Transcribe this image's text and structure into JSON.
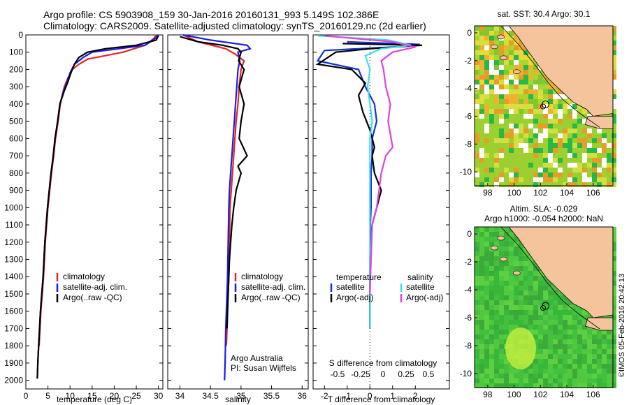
{
  "header": {
    "line1": "Argo profile: CS 5903908_159 30-Jan-2016 20160131_993 5.149S 102.386E",
    "line2": "Climatology: CARS2009. Satellite-adjusted climatology: synTS_20160129.nc (2d earlier)"
  },
  "colors": {
    "climatology": "#e8241c",
    "satellite": "#1c1ce8",
    "argo": "#000000",
    "sat_temp": "#1530d0",
    "sat_sal": "#40e0e8",
    "argo_sal": "#e040e0"
  },
  "chart_data": [
    {
      "type": "line",
      "xlabel": "temperature (deg C)",
      "ylabel": "",
      "xlim": [
        0,
        31
      ],
      "ylim": [
        2050,
        0
      ],
      "xticks": [
        "0",
        "5",
        "10",
        "15",
        "20",
        "25",
        "30"
      ],
      "yticks": [
        "0",
        "100",
        "200",
        "300",
        "400",
        "500",
        "600",
        "700",
        "800",
        "900",
        "1000",
        "1100",
        "1200",
        "1300",
        "1400",
        "1500",
        "1600",
        "1700",
        "1800",
        "1900",
        "2000"
      ],
      "legend": [
        "climatology",
        "satellite-adj. clim.",
        "Argo(..raw -QC)"
      ],
      "legend_position": "lower-center",
      "series": [
        {
          "name": "climatology",
          "x": [
            29.5,
            29,
            27,
            22,
            18,
            14,
            12,
            10.5,
            9.5,
            8.7,
            7.8,
            7.3,
            6.7,
            6.3,
            5.8,
            5.4,
            5.0,
            4.7,
            4.4,
            4.0,
            3.7,
            3.4,
            3.2,
            3.0
          ],
          "y": [
            0,
            20,
            60,
            100,
            120,
            140,
            170,
            200,
            250,
            300,
            400,
            500,
            600,
            700,
            800,
            900,
            1000,
            1100,
            1200,
            1400,
            1500,
            1600,
            1700,
            1800
          ]
        },
        {
          "name": "satellite-adj. clim.",
          "x": [
            30,
            29.3,
            27,
            21,
            15,
            13,
            11,
            10,
            9.2,
            8.5,
            7.7,
            7.2,
            6.6,
            6.2,
            5.7,
            5.3,
            4.9,
            4.6,
            4.3,
            3.9,
            3.6,
            3.3,
            3.1,
            2.9,
            2.7,
            2.6
          ],
          "y": [
            0,
            20,
            60,
            80,
            100,
            130,
            170,
            220,
            280,
            330,
            400,
            500,
            600,
            700,
            800,
            900,
            1000,
            1100,
            1200,
            1400,
            1500,
            1600,
            1700,
            1800,
            1900,
            1990
          ]
        },
        {
          "name": "Argo(..raw -QC)",
          "x": [
            30,
            29.5,
            25,
            18,
            14,
            12,
            11,
            10.2,
            9.4,
            8.6,
            7.7,
            7.2,
            6.6,
            6.2,
            5.7,
            5.3,
            4.9,
            4.6,
            4.3,
            3.9,
            3.6,
            3.3,
            3.1,
            2.9,
            2.7,
            2.6
          ],
          "y": [
            5,
            30,
            60,
            80,
            100,
            130,
            170,
            220,
            280,
            330,
            400,
            500,
            600,
            700,
            800,
            900,
            1000,
            1100,
            1200,
            1400,
            1500,
            1600,
            1700,
            1800,
            1900,
            1990
          ]
        }
      ]
    },
    {
      "type": "line",
      "xlabel": "salinity",
      "xlim": [
        33.8,
        36.1
      ],
      "ylim": [
        2050,
        0
      ],
      "xticks": [
        "34",
        "34.5",
        "35",
        "35.5",
        "36"
      ],
      "legend": [
        "climatology",
        "satellite-adj. clim.",
        "Argo(..raw -QC)"
      ],
      "legend_position": "lower-right",
      "annotations": [
        "Argo Australia",
        "PI: Susan Wijffels"
      ],
      "series": [
        {
          "name": "climatology",
          "x": [
            34.05,
            34.3,
            34.75,
            34.9,
            35.05,
            35.0,
            34.97,
            34.95,
            34.92,
            34.9,
            34.88,
            34.86,
            34.84,
            34.82,
            34.81,
            34.8,
            34.79,
            34.78,
            34.77,
            34.76
          ],
          "y": [
            0,
            40,
            80,
            110,
            150,
            200,
            300,
            400,
            500,
            600,
            700,
            800,
            900,
            1000,
            1200,
            1400,
            1500,
            1600,
            1700,
            1800
          ]
        },
        {
          "name": "satellite-adj. clim.",
          "x": [
            34.05,
            34.5,
            35.1,
            35.15,
            34.95,
            34.98,
            34.95,
            34.93,
            34.91,
            34.89,
            34.87,
            34.85,
            34.83,
            34.81,
            34.8,
            34.79,
            34.78,
            34.77,
            34.76,
            34.75,
            34.74,
            34.73
          ],
          "y": [
            0,
            30,
            60,
            80,
            100,
            150,
            200,
            300,
            400,
            500,
            600,
            700,
            800,
            900,
            1000,
            1200,
            1400,
            1500,
            1600,
            1700,
            1900,
            2000
          ]
        },
        {
          "name": "Argo(..raw -QC)",
          "x": [
            34.0,
            34.3,
            34.7,
            34.95,
            35.0,
            34.96,
            35.05,
            34.97,
            35.05,
            35.0,
            34.97,
            35.1,
            34.95,
            35.0,
            34.92,
            34.88,
            34.85,
            34.83,
            34.81,
            34.8,
            34.79,
            34.78,
            34.77
          ],
          "y": [
            10,
            40,
            60,
            80,
            100,
            150,
            200,
            300,
            400,
            500,
            600,
            700,
            760,
            800,
            900,
            1000,
            1100,
            1200,
            1300,
            1400,
            1500,
            1600,
            1700
          ]
        }
      ]
    },
    {
      "type": "line",
      "xlabel": "T difference from climatology",
      "xlabel_top": "S difference from climatology",
      "xlim": [
        -2.5,
        3.5
      ],
      "ylim": [
        2050,
        0
      ],
      "xticks": [
        "-2",
        "-1",
        "0",
        "1",
        "2"
      ],
      "xticks_s": [
        "-0.5",
        "-0.25",
        "0",
        "0.25",
        "0.5"
      ],
      "legend_temperature": {
        "title": "temperature",
        "items": [
          "satellite",
          "Argo(-adj)"
        ]
      },
      "legend_salinity": {
        "title": "salinity",
        "items": [
          "satellite",
          "Argo(-adj)"
        ]
      },
      "series": [
        {
          "name": "satellite (temperature)",
          "x": [
            -1.0,
            2.2,
            1.0,
            -2.0,
            -2.3,
            -0.5,
            -0.2,
            0.2,
            0.3,
            0.1,
            0.1,
            0.05,
            0.05,
            0.05,
            0.02,
            0.02,
            0.0,
            0.0,
            0.0,
            0.0,
            0.0
          ],
          "y": [
            40,
            55,
            70,
            90,
            150,
            200,
            300,
            400,
            500,
            600,
            700,
            800,
            900,
            1000,
            1100,
            1200,
            1300,
            1400,
            1500,
            1600,
            1700
          ]
        },
        {
          "name": "Argo(-adj) (temperature)",
          "x": [
            -1.2,
            2.3,
            0.0,
            -1.5,
            -2.3,
            -0.8,
            -0.2,
            -0.5,
            -0.3,
            0.0,
            0.2,
            0.1,
            0.2,
            0.5,
            0.3,
            0.1,
            0.05,
            0.0,
            0.0,
            0.0
          ],
          "y": [
            50,
            60,
            80,
            100,
            170,
            200,
            280,
            350,
            450,
            550,
            650,
            700,
            800,
            900,
            1000,
            1100,
            1200,
            1400,
            1600,
            1700
          ]
        },
        {
          "name": "satellite (salinity)",
          "x": [
            -2.3,
            0.8,
            1.8,
            0.5,
            -0.2,
            0.0,
            -0.1,
            0.0,
            0.1,
            0.0,
            0.0,
            0.0,
            0.0,
            0.0,
            0.0,
            0.0,
            0.0
          ],
          "y": [
            5,
            30,
            60,
            80,
            120,
            200,
            300,
            400,
            500,
            600,
            700,
            900,
            1100,
            1300,
            1500,
            1600,
            1700
          ]
        },
        {
          "name": "Argo(-adj) (salinity)",
          "x": [
            -2.0,
            1.0,
            2.0,
            1.0,
            0.5,
            0.6,
            0.7,
            0.9,
            0.8,
            1.0,
            0.7,
            0.5,
            0.4,
            0.3,
            0.1,
            0.05,
            0.0
          ],
          "y": [
            5,
            40,
            70,
            100,
            150,
            200,
            300,
            400,
            500,
            650,
            700,
            800,
            900,
            1000,
            1100,
            1300,
            1500
          ]
        }
      ]
    },
    {
      "type": "heatmap",
      "title": "sat. SST: 30.4  Argo: 30.1",
      "xlim": [
        97,
        107.5
      ],
      "ylim": [
        -11,
        0.5
      ],
      "xticks": [
        "98",
        "100",
        "102",
        "104",
        "106"
      ],
      "yticks": [
        "0",
        "-2",
        "-4",
        "-6",
        "-8",
        "-10"
      ]
    },
    {
      "type": "heatmap",
      "title": "Altim. SLA: -0.029",
      "subtitle": "Argo h1000: -0.054  h2000: NaN",
      "xlim": [
        97,
        107.5
      ],
      "ylim": [
        -11,
        0.5
      ],
      "xticks": [
        "98",
        "100",
        "102",
        "104",
        "106"
      ],
      "yticks": [
        "0",
        "-2",
        "-4",
        "-6",
        "-8",
        "-10"
      ]
    }
  ],
  "credit": "©IMOS 05-Feb-2016 20:42:13"
}
